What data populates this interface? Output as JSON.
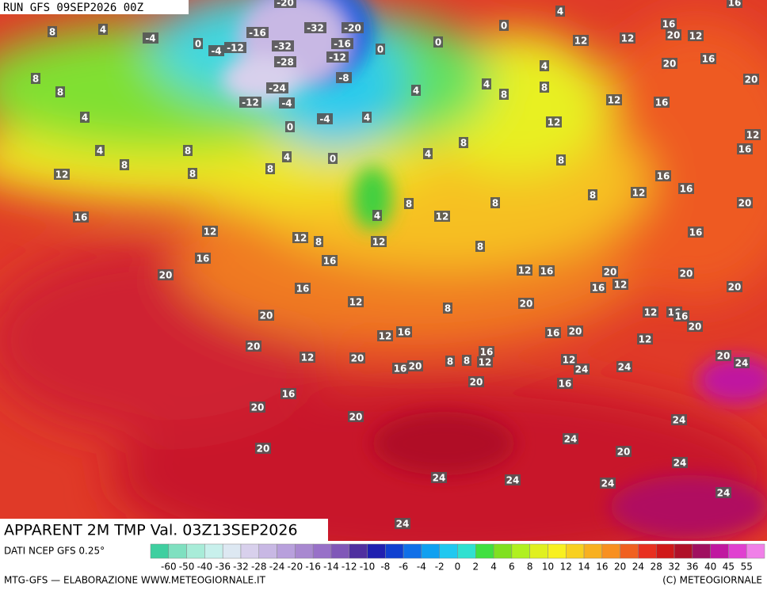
{
  "run_label": "RUN GFS 09SEP2026 00Z",
  "title": "APPARENT 2M TMP Val. 03Z13SEP2026",
  "source": "DATI NCEP GFS 0.25°",
  "credit": "MTG-GFS — ELABORAZIONE WWW.METEOGIORNALE.IT",
  "copyright": "(C) METEOGIORNALE",
  "colorbar": {
    "ticks": [
      -60,
      -50,
      -40,
      -36,
      -32,
      -28,
      -24,
      -20,
      -16,
      -14,
      -12,
      -10,
      -8,
      -6,
      -4,
      -2,
      0,
      2,
      4,
      6,
      8,
      10,
      12,
      14,
      16,
      20,
      24,
      28,
      32,
      36,
      40,
      45,
      55
    ],
    "colors": [
      "#3fcfa0",
      "#7fe0c0",
      "#a8ecd8",
      "#c8f0ec",
      "#dde8f2",
      "#d8d0ec",
      "#c8b8e4",
      "#b8a0dc",
      "#a888d0",
      "#9870c8",
      "#8058b8",
      "#5030a0",
      "#2020b0",
      "#1040d0",
      "#1070e8",
      "#10a0f0",
      "#20c8f0",
      "#30e0d0",
      "#40e040",
      "#80e020",
      "#b0f020",
      "#e0f020",
      "#f8f020",
      "#f8d020",
      "#f8b020",
      "#f89020",
      "#f06020",
      "#e83020",
      "#d01818",
      "#b01028",
      "#a01060",
      "#c018a0",
      "#e040d0",
      "#f080e8"
    ]
  },
  "map_labels": [
    8,
    4,
    -4,
    0,
    -4,
    -12,
    -16,
    -32,
    -28,
    -32,
    -20,
    -16,
    -12,
    -8,
    -24,
    -12,
    -4,
    -4,
    4,
    0,
    4,
    0,
    0,
    0,
    0,
    4,
    12,
    12,
    16,
    20,
    12,
    16,
    20,
    20,
    4,
    4,
    8,
    8,
    4,
    12,
    12,
    16,
    12,
    16,
    8,
    4,
    8,
    8,
    8,
    4,
    4,
    8,
    8,
    8,
    8,
    12,
    16,
    12,
    16,
    8,
    20,
    8,
    4,
    12,
    8,
    16,
    12,
    12,
    8,
    12,
    8,
    16,
    16,
    16,
    20,
    12,
    16,
    20,
    12,
    16,
    20,
    20,
    16,
    12,
    8,
    20,
    20,
    12,
    16,
    16,
    20,
    16,
    20,
    12,
    16,
    20,
    12,
    12,
    20,
    16,
    12,
    8,
    8,
    12,
    24,
    24,
    20,
    24,
    16,
    20,
    20,
    16,
    16,
    20,
    20,
    24,
    24,
    20,
    20,
    24,
    24,
    24,
    24,
    24,
    24,
    16,
    -20
  ]
}
